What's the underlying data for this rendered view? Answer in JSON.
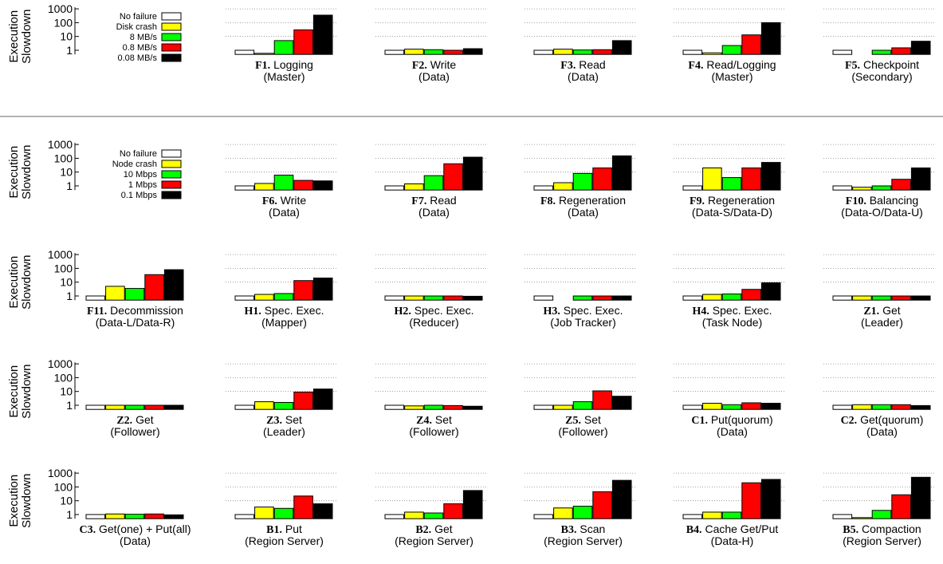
{
  "colors": {
    "series": [
      "#ffffff",
      "#ffff00",
      "#00ff00",
      "#ff0000",
      "#000000"
    ],
    "stroke": "#000000",
    "grid": "#888888",
    "separator": "#666666"
  },
  "y_axis": {
    "label_line1": "Execution",
    "label_line2": "Slowdown",
    "ticks": [
      {
        "value": 1,
        "label": "1"
      },
      {
        "value": 10,
        "label": "10"
      },
      {
        "value": 100,
        "label": "100"
      },
      {
        "value": 1000,
        "label": "1000"
      }
    ]
  },
  "legends": [
    [
      "No failure",
      "Disk crash",
      "8 MB/s",
      "0.8 MB/s",
      "0.08 MB/s"
    ],
    [
      "No failure",
      "Node crash",
      "10 Mbps",
      "1 Mbps",
      "0.1 Mbps"
    ]
  ],
  "chart_data": {
    "type": "bar",
    "y_scale": "log",
    "ylim": [
      0.5,
      1000
    ],
    "grid": "dotted horizontal",
    "panels": [
      {
        "id": "F1.",
        "name": "Logging",
        "sub": "(Master)",
        "values": [
          1,
          0.6,
          5,
          30,
          350
        ]
      },
      {
        "id": "F2.",
        "name": "Write",
        "sub": "(Data)",
        "values": [
          1,
          1.2,
          1.1,
          1,
          1.3
        ]
      },
      {
        "id": "F3.",
        "name": "Read",
        "sub": "(Data)",
        "values": [
          1,
          1.2,
          1.05,
          1.1,
          5
        ]
      },
      {
        "id": "F4.",
        "name": "Read/Logging",
        "sub": "(Master)",
        "values": [
          1,
          0.65,
          2.2,
          13,
          100
        ]
      },
      {
        "id": "F5.",
        "name": "Checkpoint",
        "sub": "(Secondary)",
        "values": [
          1,
          null,
          1,
          1.5,
          4.5
        ]
      },
      {
        "id": "F6.",
        "name": "Write",
        "sub": "(Data)",
        "values": [
          1,
          1.5,
          6,
          2.5,
          2.3
        ]
      },
      {
        "id": "F7.",
        "name": "Read",
        "sub": "(Data)",
        "values": [
          1,
          1.4,
          5.5,
          40,
          120
        ]
      },
      {
        "id": "F8.",
        "name": "Regeneration",
        "sub": "(Data)",
        "values": [
          1,
          1.7,
          8,
          20,
          150
        ]
      },
      {
        "id": "F9.",
        "name": "Regeneration",
        "sub": "(Data-S/Data-D)",
        "values": [
          1,
          20,
          4,
          20,
          50
        ]
      },
      {
        "id": "F10.",
        "name": "Balancing",
        "sub": "(Data-O/Data-U)",
        "values": [
          1,
          0.8,
          1,
          3,
          20
        ]
      },
      {
        "id": "F11.",
        "name": "Decommission",
        "sub": "(Data-L/Data-R)",
        "values": [
          1,
          5,
          3.5,
          35,
          80
        ]
      },
      {
        "id": "H1.",
        "name": "Spec. Exec.",
        "sub": "(Mapper)",
        "values": [
          1,
          1.3,
          1.5,
          13,
          20
        ]
      },
      {
        "id": "H2.",
        "name": "Spec. Exec.",
        "sub": "(Reducer)",
        "values": [
          1,
          1,
          1,
          1,
          0.95
        ]
      },
      {
        "id": "H3.",
        "name": "Spec. Exec.",
        "sub": "(Job Tracker)",
        "values": [
          1,
          null,
          1,
          1,
          1
        ]
      },
      {
        "id": "H4.",
        "name": "Spec. Exec.",
        "sub": "(Task Node)",
        "values": [
          1,
          1.3,
          1.4,
          3,
          9
        ]
      },
      {
        "id": "Z1.",
        "name": "Get",
        "sub": "(Leader)",
        "values": [
          1,
          1,
          1,
          1,
          1
        ]
      },
      {
        "id": "Z2.",
        "name": "Get",
        "sub": "(Follower)",
        "values": [
          1,
          1,
          1,
          1,
          1
        ]
      },
      {
        "id": "Z3.",
        "name": "Set",
        "sub": "(Leader)",
        "values": [
          1,
          1.8,
          1.6,
          9,
          15
        ]
      },
      {
        "id": "Z4.",
        "name": "Set",
        "sub": "(Follower)",
        "values": [
          1,
          0.9,
          1,
          0.95,
          0.85
        ]
      },
      {
        "id": "Z5.",
        "name": "Set",
        "sub": "(Follower)",
        "values": [
          1,
          1,
          1.8,
          11,
          4.5
        ]
      },
      {
        "id": "C1.",
        "name": "Put(quorum)",
        "sub": "(Data)",
        "values": [
          1,
          1.4,
          1.1,
          1.5,
          1.4
        ]
      },
      {
        "id": "C2.",
        "name": "Get(quorum)",
        "sub": "(Data)",
        "values": [
          1,
          1.1,
          1.1,
          1.1,
          0.95
        ]
      },
      {
        "id": "C3.",
        "name": "Get(one) + Put(all)",
        "sub": "(Data)",
        "values": [
          1,
          1.1,
          1.05,
          1.1,
          0.95
        ]
      },
      {
        "id": "B1.",
        "name": "Put",
        "sub": "(Region Server)",
        "values": [
          1,
          3.5,
          2.8,
          22,
          6
        ]
      },
      {
        "id": "B2.",
        "name": "Get",
        "sub": "(Region Server)",
        "values": [
          1,
          1.5,
          1.3,
          6,
          55
        ]
      },
      {
        "id": "B3.",
        "name": "Scan",
        "sub": "(Region Server)",
        "values": [
          1,
          3,
          4,
          45,
          300
        ]
      },
      {
        "id": "B4.",
        "name": "Cache Get/Put",
        "sub": "(Data-H)",
        "values": [
          1,
          1.5,
          1.5,
          200,
          350
        ]
      },
      {
        "id": "B5.",
        "name": "Compaction",
        "sub": "(Region Server)",
        "values": [
          1,
          0.6,
          2,
          27,
          500
        ]
      }
    ]
  }
}
